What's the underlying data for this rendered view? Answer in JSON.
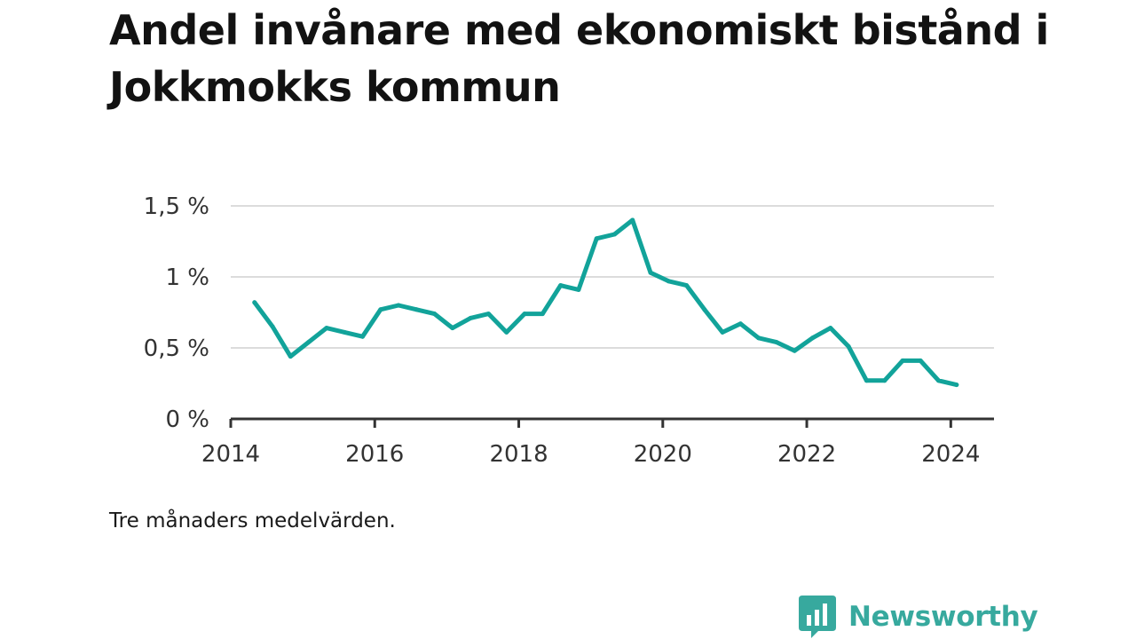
{
  "title": "Andel invånare med ekonomiskt bistånd i Jokkmokks kommun",
  "note": "Tre månaders medelvärden.",
  "brand": {
    "name": "Newsworthy",
    "logo_icon": "newsworthy-bar-chart-logo-icon",
    "color": "#37a99e"
  },
  "chart_data": {
    "type": "line",
    "title": "Andel invånare med ekonomiskt bistånd i Jokkmokks kommun",
    "xlabel": "",
    "ylabel": "",
    "xlim": [
      2014,
      2024.6
    ],
    "ylim": [
      0,
      1.5
    ],
    "grid": true,
    "line_color": "#12a39a",
    "x_ticks": [
      {
        "value": 2014,
        "label": "2014"
      },
      {
        "value": 2016,
        "label": "2016"
      },
      {
        "value": 2018,
        "label": "2018"
      },
      {
        "value": 2020,
        "label": "2020"
      },
      {
        "value": 2022,
        "label": "2022"
      },
      {
        "value": 2024,
        "label": "2024"
      }
    ],
    "y_ticks": [
      {
        "value": 0,
        "label": "0 %"
      },
      {
        "value": 0.5,
        "label": "0,5 %"
      },
      {
        "value": 1,
        "label": "1 %"
      },
      {
        "value": 1.5,
        "label": "1,5 %"
      }
    ],
    "series": [
      {
        "x": [
          2014.33,
          2014.58,
          2014.83,
          2015.08,
          2015.33,
          2015.58,
          2015.83,
          2016.08,
          2016.33,
          2016.58,
          2016.83,
          2017.08,
          2017.33,
          2017.58,
          2017.83,
          2018.08,
          2018.33,
          2018.58,
          2018.83,
          2019.08,
          2019.33,
          2019.58,
          2019.83,
          2020.08,
          2020.33,
          2020.58,
          2020.83,
          2021.08,
          2021.33,
          2021.58,
          2021.83,
          2022.08,
          2022.33,
          2022.58,
          2022.83,
          2023.08,
          2023.33,
          2023.58,
          2023.83,
          2024.08
        ],
        "values": [
          0.82,
          0.65,
          0.44,
          0.54,
          0.64,
          0.61,
          0.58,
          0.77,
          0.8,
          0.77,
          0.74,
          0.64,
          0.71,
          0.74,
          0.61,
          0.74,
          0.74,
          0.94,
          0.91,
          1.27,
          1.3,
          1.4,
          1.03,
          0.97,
          0.94,
          0.77,
          0.61,
          0.67,
          0.57,
          0.54,
          0.48,
          0.57,
          0.64,
          0.51,
          0.27,
          0.27,
          0.41,
          0.41,
          0.27,
          0.24
        ]
      }
    ]
  }
}
